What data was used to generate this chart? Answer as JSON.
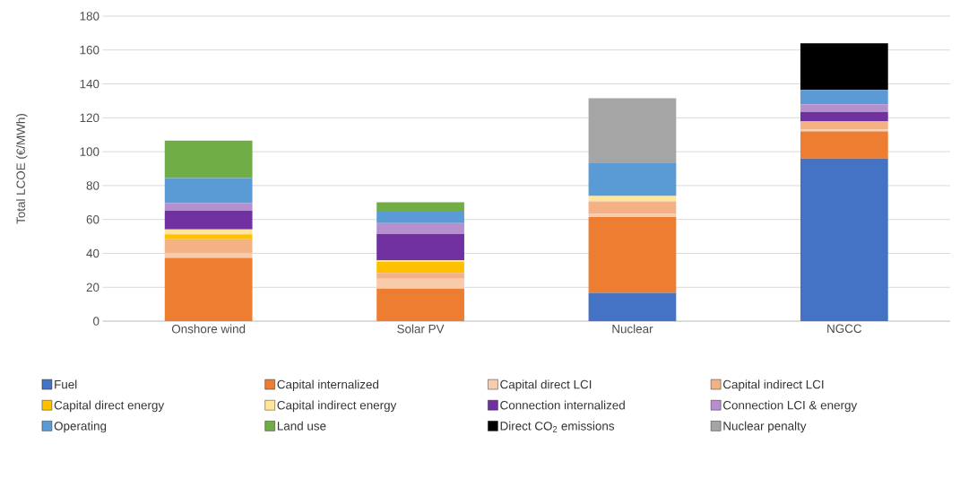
{
  "chart_data": {
    "type": "bar",
    "stacked": true,
    "ylabel": "Total LCOE (€/MWh)",
    "categories": [
      "Onshore wind",
      "Solar PV",
      "Nuclear",
      "NGCC"
    ],
    "ylim": [
      0,
      180
    ],
    "yticks": [
      0,
      20,
      40,
      60,
      80,
      100,
      120,
      140,
      160,
      180
    ],
    "grid": "y",
    "legend": "bottom",
    "series": [
      {
        "name": "Fuel",
        "color": "#4472c4",
        "values": [
          0,
          0,
          16.7,
          96
        ]
      },
      {
        "name": "Capital internalized",
        "color": "#ed7d31",
        "values": [
          37.3,
          19.2,
          44.7,
          16
        ]
      },
      {
        "name": "Capital direct LCI",
        "color": "#f8cbad",
        "values": [
          3,
          5.8,
          2,
          1
        ]
      },
      {
        "name": "Capital indirect LCI",
        "color": "#f4b183",
        "values": [
          8,
          3.5,
          7.3,
          5
        ]
      },
      {
        "name": "Capital direct energy",
        "color": "#ffc000",
        "values": [
          3,
          6.5,
          0,
          0
        ]
      },
      {
        "name": "Capital indirect energy",
        "color": "#ffe699",
        "values": [
          2.8,
          0.9,
          3.1,
          0
        ]
      },
      {
        "name": "Connection internalized",
        "color": "#7030a0",
        "values": [
          11,
          15.5,
          0,
          5.5
        ]
      },
      {
        "name": "Connection LCI & energy",
        "color": "#b68fd0",
        "values": [
          4.5,
          6.5,
          0,
          4.5
        ]
      },
      {
        "name": "Operating",
        "color": "#5b9bd5",
        "values": [
          14.8,
          6.7,
          19.8,
          8.5
        ]
      },
      {
        "name": "Land use",
        "color": "#70ad47",
        "values": [
          22.2,
          5.6,
          0,
          0
        ]
      },
      {
        "name": "Direct CO$_{2}$ emissions",
        "color": "#000000",
        "values": [
          0,
          0,
          0,
          27.5
        ]
      },
      {
        "name": "Nuclear penalty",
        "color": "#a5a5a5",
        "values": [
          0,
          0,
          37.9,
          0
        ]
      }
    ]
  }
}
